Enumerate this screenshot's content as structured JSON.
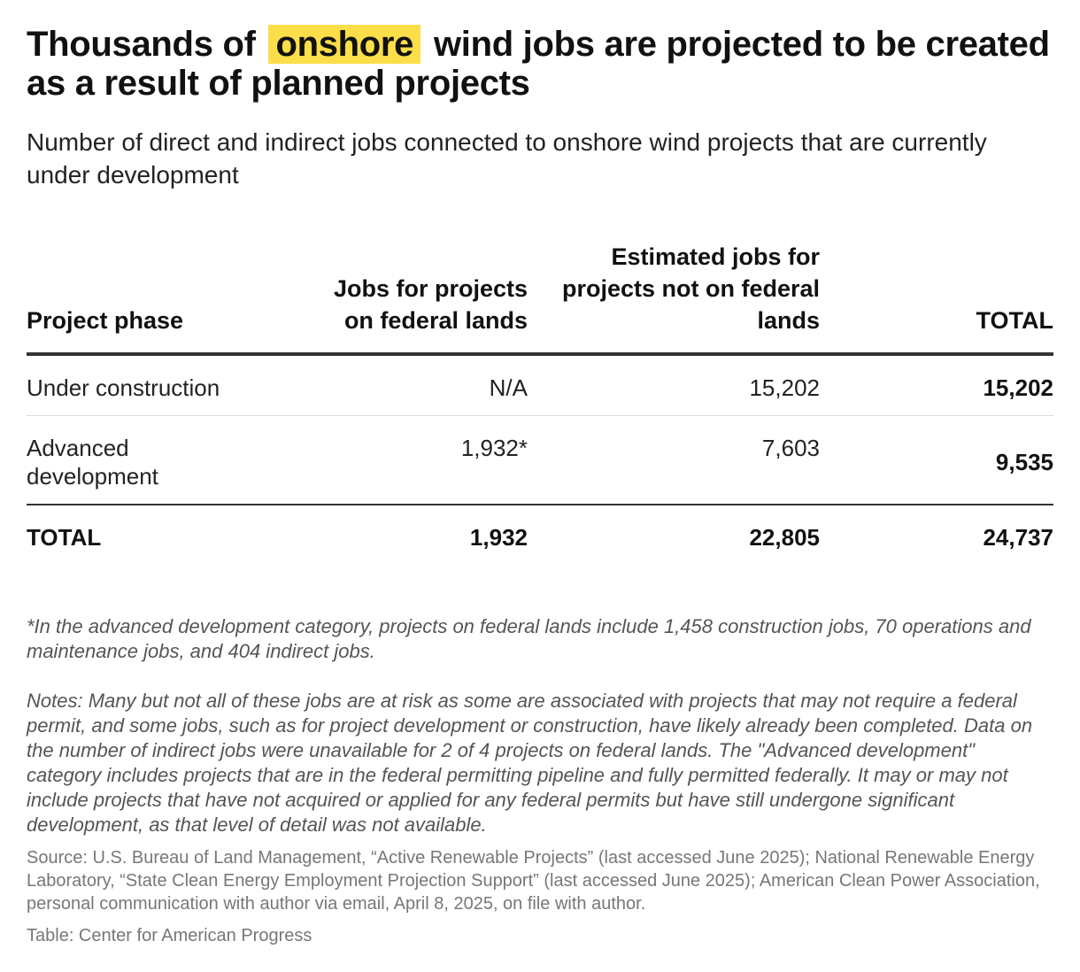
{
  "header": {
    "title_before": "Thousands of",
    "title_highlight": "onshore",
    "title_after": "wind jobs are projected to be created as a result of planned projects",
    "highlight_color": "#fbde4a",
    "subtitle": "Number of direct and indirect jobs connected to onshore wind projects that are currently under development"
  },
  "chart_data": {
    "type": "table",
    "columns": [
      "Project phase",
      "Jobs for projects on federal lands",
      "Estimated jobs for projects not on federal lands",
      "TOTAL"
    ],
    "rows": [
      [
        "Under construction",
        "N/A",
        "15,202",
        "15,202"
      ],
      [
        "Advanced development",
        "1,932*",
        "7,603",
        "9,535"
      ],
      [
        "TOTAL",
        "1,932",
        "22,805",
        "24,737"
      ]
    ]
  },
  "footer": {
    "footnote": "*In the advanced development category, projects on federal lands include 1,458 construction jobs, 70 operations and maintenance jobs, and 404 indirect jobs.",
    "notes": "Notes: Many but not all of these jobs are at risk as some are associated with projects that may not require a federal permit, and some jobs, such as for project development or construction, have likely already been completed. Data on the number of indirect jobs were unavailable for 2 of 4 projects on federal lands. The \"Advanced development\" category includes projects that are in the federal permitting pipeline and fully permitted federally. It may or may not include projects that have not acquired or applied for any federal permits but have still undergone significant development, as that level of detail was not available.",
    "source": "Source: U.S. Bureau of Land Management, “Active Renewable Projects” (last accessed June 2025); National Renewable Energy Laboratory, “State Clean Energy Employment Projection Support” (last accessed June 2025); American Clean Power Association, personal communication with author via email, April 8, 2025, on file with author.",
    "credit": "Table: Center for American Progress"
  }
}
